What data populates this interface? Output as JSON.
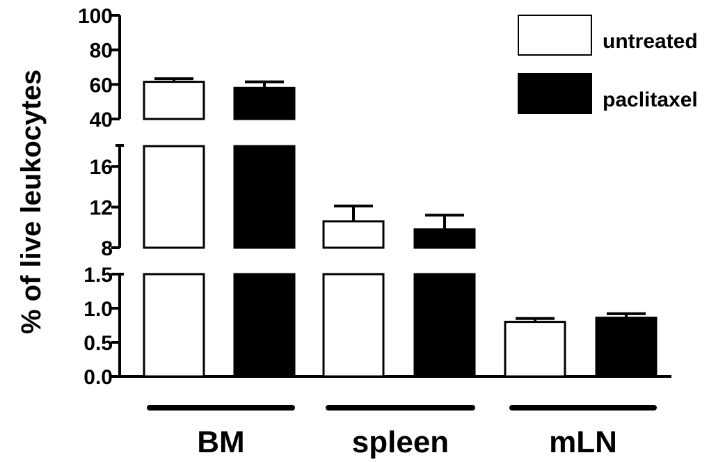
{
  "chart_data": {
    "type": "bar",
    "ylabel": "% of live leukocytes",
    "categories": [
      "BM",
      "spleen",
      "mLN"
    ],
    "series": [
      {
        "name": "untreated",
        "values": [
          61.5,
          10.6,
          0.8
        ],
        "errors": [
          1.8,
          1.5,
          0.05
        ],
        "color": "#ffffff"
      },
      {
        "name": "paclitaxel",
        "values": [
          58.0,
          9.8,
          0.86
        ],
        "errors": [
          3.5,
          1.4,
          0.06
        ],
        "color": "#000000"
      }
    ],
    "y_segments": [
      {
        "range": [
          0,
          1.5
        ],
        "ticks": [
          "0.0",
          "0.5",
          "1.0",
          "1.5"
        ]
      },
      {
        "range": [
          8,
          18
        ],
        "ticks": [
          "8",
          "12",
          "16"
        ]
      },
      {
        "range": [
          40,
          100
        ],
        "ticks": [
          "40",
          "60",
          "80",
          "100"
        ]
      }
    ],
    "legend_position": "top-right"
  }
}
